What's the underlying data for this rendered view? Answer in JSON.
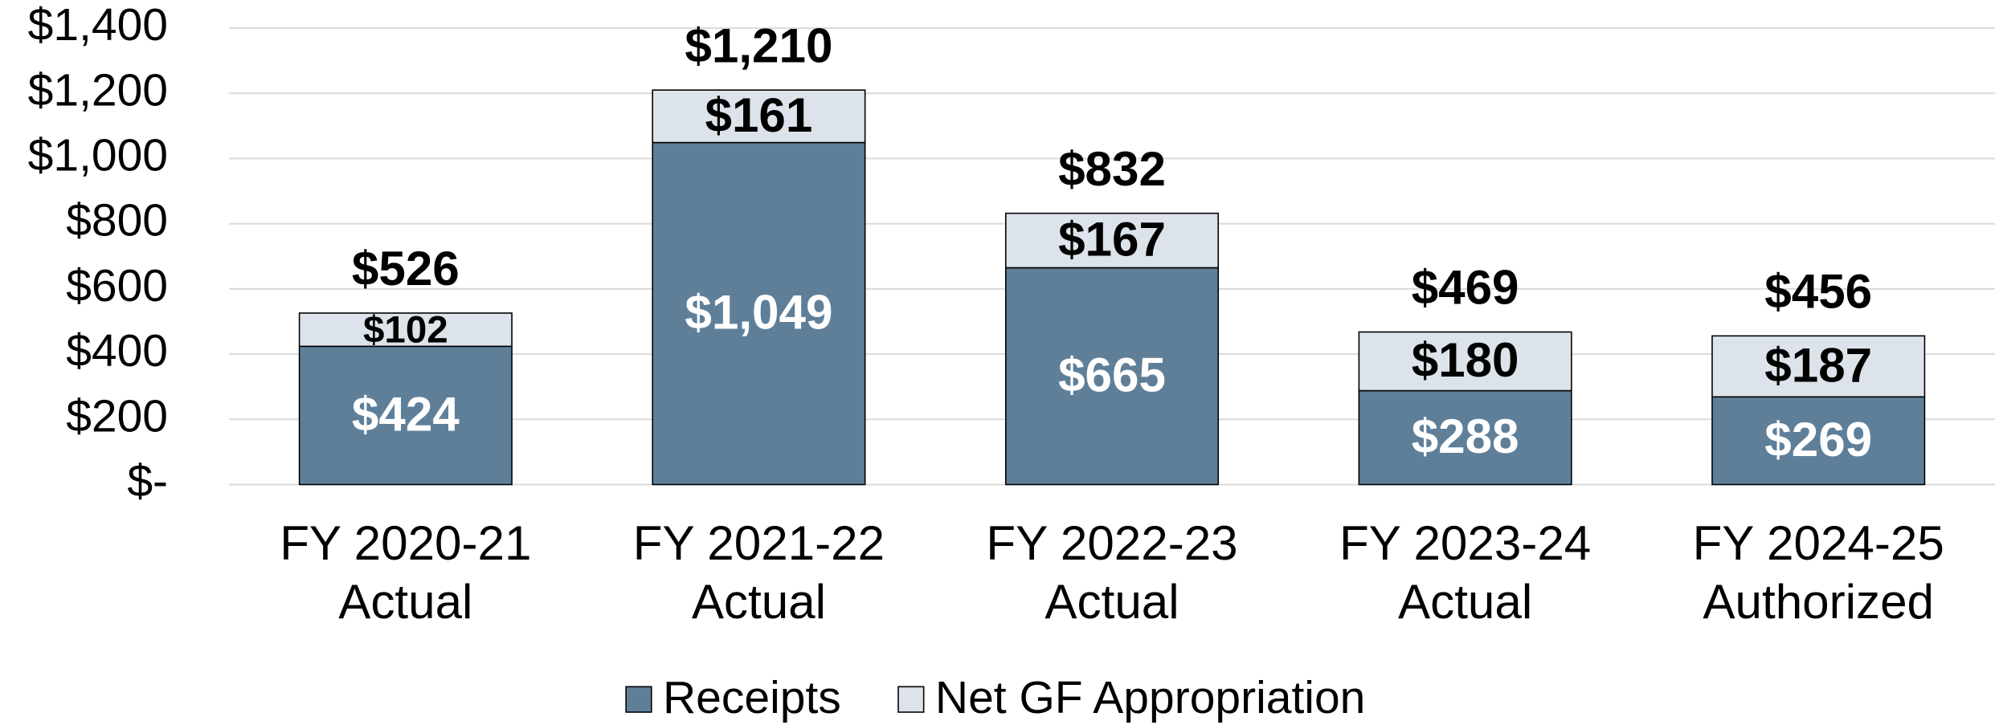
{
  "chart_data": {
    "type": "stacked_bar",
    "categories": [
      [
        "FY 2020-21",
        "Actual"
      ],
      [
        "FY 2021-22",
        "Actual"
      ],
      [
        "FY 2022-23",
        "Actual"
      ],
      [
        "FY 2023-24",
        "Actual"
      ],
      [
        "FY 2024-25",
        "Authorized"
      ]
    ],
    "series": [
      {
        "name": "Receipts",
        "color": "#5f7f99",
        "values": [
          424,
          1049,
          665,
          288,
          269
        ],
        "value_labels": [
          "$424",
          "$1,049",
          "$665",
          "$288",
          "$269"
        ]
      },
      {
        "name": "Net GF Appropriation",
        "color": "#dce3ea",
        "values": [
          102,
          161,
          167,
          180,
          187
        ],
        "value_labels": [
          "$102",
          "$161",
          "$167",
          "$180",
          "$187"
        ]
      }
    ],
    "totals": [
      526,
      1210,
      832,
      469,
      456
    ],
    "total_labels": [
      "$526",
      "$1,210",
      "$832",
      "$469",
      "$456"
    ],
    "ylim": [
      0,
      1400
    ],
    "yticks": [
      {
        "value": 0,
        "label": "$-"
      },
      {
        "value": 200,
        "label": "$200"
      },
      {
        "value": 400,
        "label": "$400"
      },
      {
        "value": 600,
        "label": "$600"
      },
      {
        "value": 800,
        "label": "$800"
      },
      {
        "value": 1000,
        "label": "$1,000"
      },
      {
        "value": 1200,
        "label": "$1,200"
      },
      {
        "value": 1400,
        "label": "$1,400"
      }
    ],
    "grid": true,
    "legend": "bottom"
  }
}
